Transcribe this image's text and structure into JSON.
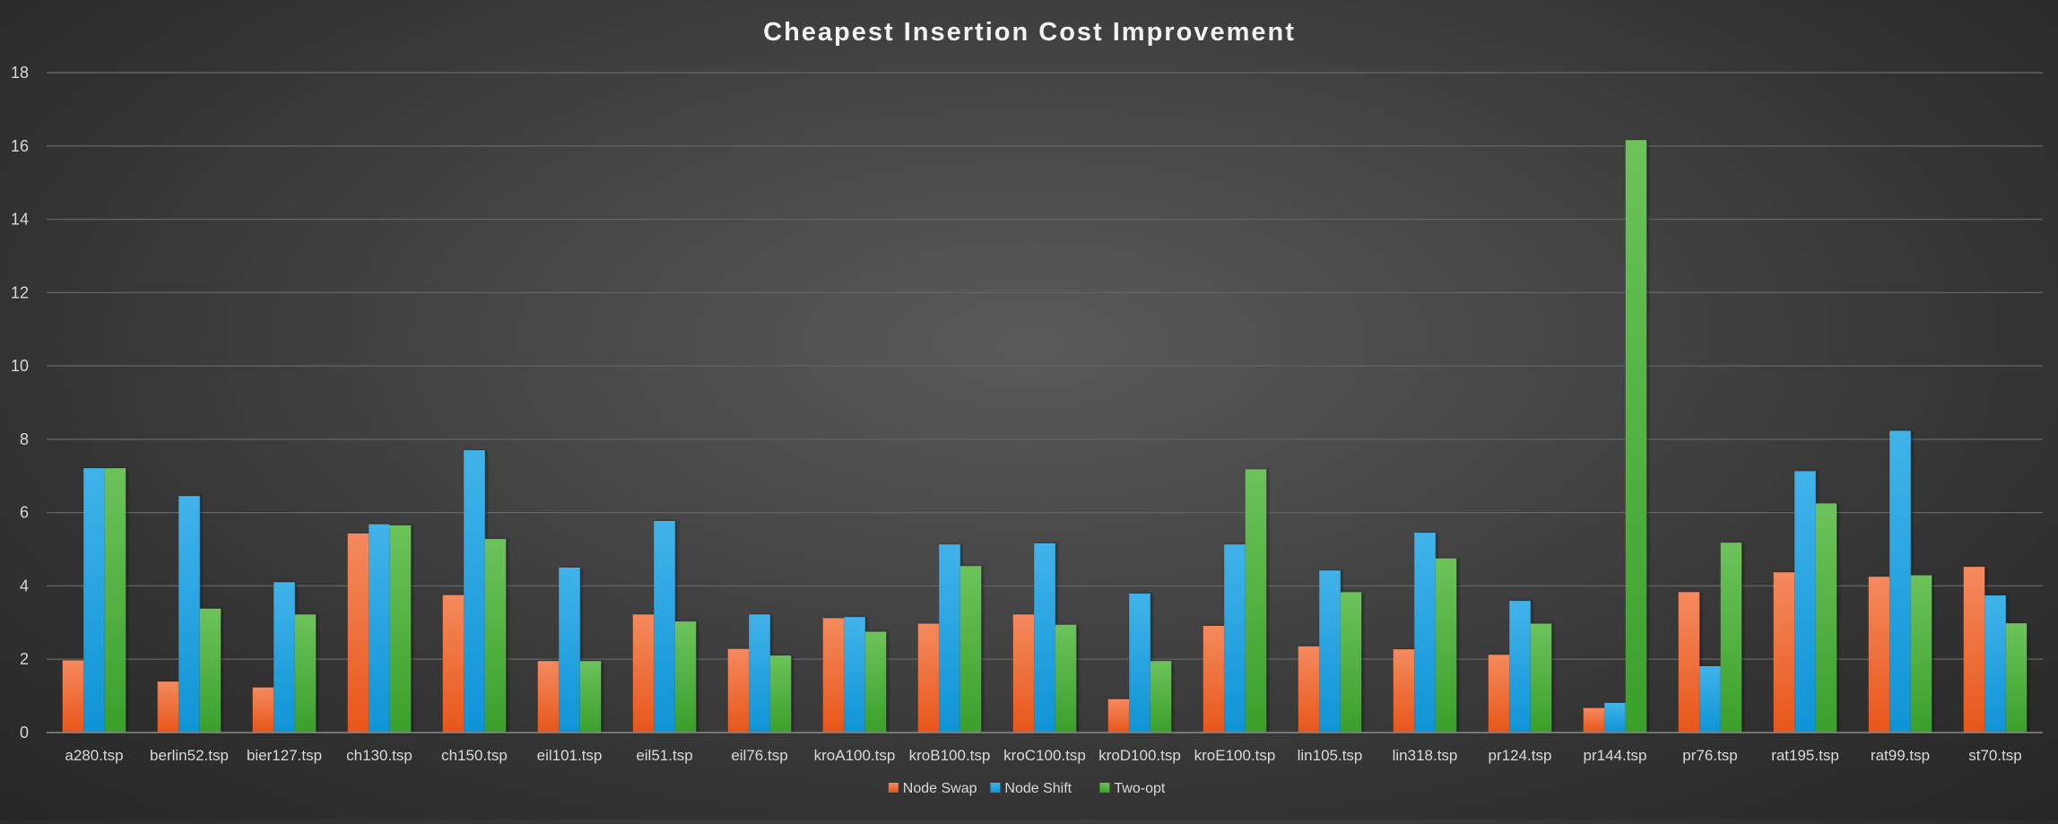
{
  "chart_data": {
    "type": "bar",
    "title": "Cheapest Insertion Cost Improvement",
    "xlabel": "",
    "ylabel": "",
    "ylim": [
      0,
      18
    ],
    "yticks": [
      "0",
      "2",
      "4",
      "6",
      "8",
      "10",
      "12",
      "14",
      "16",
      "18"
    ],
    "grid": true,
    "legend_position": "bottom",
    "categories": [
      "a280.tsp",
      "berlin52.tsp",
      "bier127.tsp",
      "ch130.tsp",
      "ch150.tsp",
      "eil101.tsp",
      "eil51.tsp",
      "eil76.tsp",
      "kroA100.tsp",
      "kroB100.tsp",
      "kroC100.tsp",
      "kroD100.tsp",
      "kroE100.tsp",
      "lin105.tsp",
      "lin318.tsp",
      "pr124.tsp",
      "pr144.tsp",
      "pr76.tsp",
      "rat195.tsp",
      "rat99.tsp",
      "st70.tsp"
    ],
    "series": [
      {
        "name": "Node Swap",
        "color": "#f0652a",
        "values": [
          1.97,
          1.39,
          1.23,
          5.43,
          3.75,
          1.95,
          3.22,
          2.28,
          3.12,
          2.97,
          3.22,
          0.91,
          2.91,
          2.35,
          2.27,
          2.12,
          0.67,
          3.83,
          4.37,
          4.25,
          4.52
        ]
      },
      {
        "name": "Node Shift",
        "color": "#1ba1e2",
        "values": [
          7.21,
          6.45,
          4.1,
          5.68,
          7.7,
          4.5,
          5.77,
          3.22,
          3.15,
          5.13,
          5.16,
          3.79,
          5.13,
          4.42,
          5.45,
          3.59,
          0.81,
          1.81,
          7.13,
          8.23,
          3.74
        ]
      },
      {
        "name": "Two-opt",
        "color": "#55b93c",
        "values": [
          7.21,
          3.38,
          3.22,
          5.65,
          5.28,
          1.95,
          3.03,
          2.1,
          2.75,
          4.54,
          2.94,
          1.95,
          7.18,
          3.83,
          4.75,
          2.97,
          16.16,
          5.18,
          6.25,
          4.29,
          2.98
        ]
      }
    ]
  }
}
